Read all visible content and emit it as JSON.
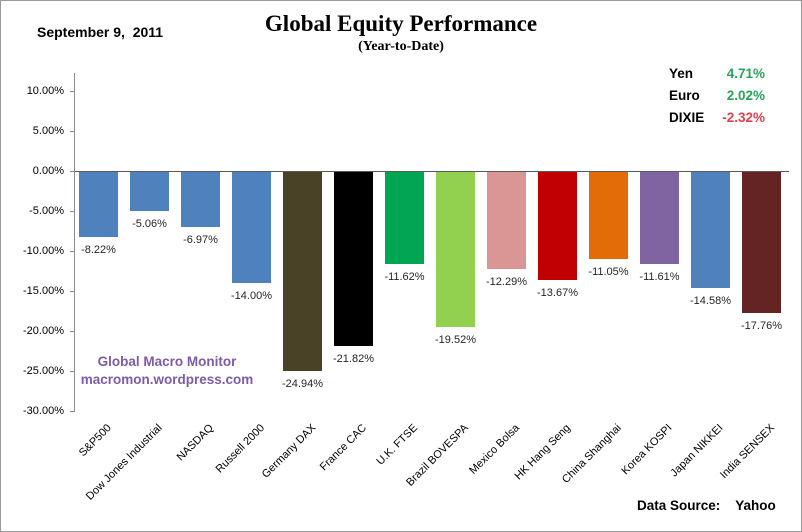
{
  "header": {
    "date": "September 9,  2011",
    "title": "Global Equity Performance",
    "subtitle": "(Year-to-Date)"
  },
  "currency_legend": {
    "items": [
      {
        "label": "Yen",
        "value": "4.71%",
        "color": "#2aa35a"
      },
      {
        "label": "Euro",
        "value": "2.02%",
        "color": "#2aa35a"
      },
      {
        "label": "DIXIE",
        "value": "-2.32%",
        "color": "#e0404f"
      }
    ]
  },
  "watermark": {
    "line1": "Global Macro Monitor",
    "line2": "macromon.wordpress.com",
    "color": "#7c5ca6"
  },
  "footer": {
    "source_label": "Data Source:",
    "source_value": "Yahoo"
  },
  "chart_data": {
    "type": "bar",
    "title": "Global Equity Performance",
    "subtitle": "(Year-to-Date)",
    "categories": [
      "S&P500",
      "Dow Jones Industrial",
      "NASDAQ",
      "Russell 2000",
      "Germany DAX",
      "France CAC",
      "U.K. FTSE",
      "Brazil BOVESPA",
      "Mexico Bolsa",
      "HK Hang Seng",
      "China Shanghai",
      "Korea KOSPI",
      "Japan NIKKEI",
      "India SENSEX"
    ],
    "values": [
      -8.22,
      -5.06,
      -6.97,
      -14.0,
      -24.94,
      -21.82,
      -11.62,
      -19.52,
      -12.29,
      -13.67,
      -11.05,
      -11.61,
      -14.58,
      -17.76
    ],
    "value_labels": [
      "-8.22%",
      "-5.06%",
      "-6.97%",
      "-14.00%",
      "-24.94%",
      "-21.82%",
      "-11.62%",
      "-19.52%",
      "-12.29%",
      "-13.67%",
      "-11.05%",
      "-11.61%",
      "-14.58%",
      "-17.76%"
    ],
    "bar_colors": [
      "#4f81bd",
      "#4f81bd",
      "#4f81bd",
      "#4f81bd",
      "#4a4227",
      "#000000",
      "#00a651",
      "#92d050",
      "#d99694",
      "#c00000",
      "#e36c09",
      "#8064a2",
      "#4f81bd",
      "#632423"
    ],
    "xlabel": "",
    "ylabel": "",
    "ylim": [
      -30,
      10
    ],
    "ytick_step": 5,
    "ytick_labels": [
      "10.00%",
      "5.00%",
      "0.00%",
      "-5.00%",
      "-10.00%",
      "-15.00%",
      "-20.00%",
      "-25.00%",
      "-30.00%"
    ],
    "grid": false,
    "baseline": 0,
    "legend_position": "top-right",
    "data_source": "Yahoo"
  }
}
